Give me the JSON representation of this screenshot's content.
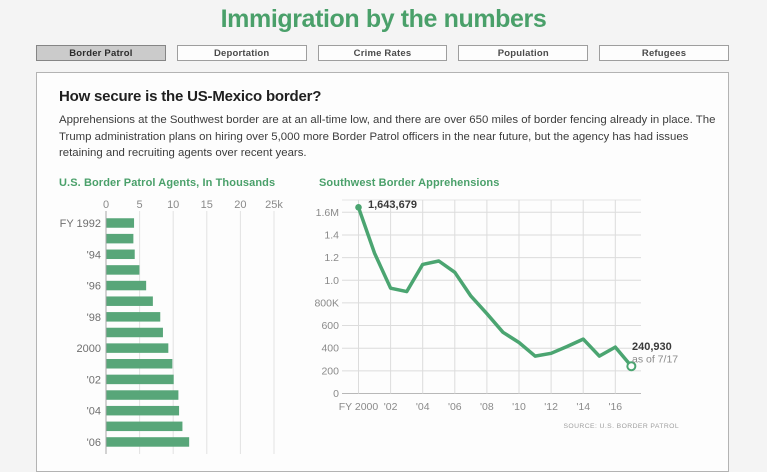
{
  "page": {
    "title": "Immigration by the numbers"
  },
  "tabs": [
    {
      "label": "Border Patrol",
      "active": true
    },
    {
      "label": "Deportation",
      "active": false
    },
    {
      "label": "Crime Rates",
      "active": false
    },
    {
      "label": "Population",
      "active": false
    },
    {
      "label": "Refugees",
      "active": false
    }
  ],
  "article": {
    "heading": "How secure is the US-Mexico border?",
    "body": "Apprehensions at the Southwest border are at an all-time low, and there are over 650 miles of border fencing already in place. The Trump administration plans on hiring over 5,000 more Border Patrol officers in the near future, but the agency has had issues retaining and recruiting agents over recent years."
  },
  "colors": {
    "accent_green": "#4aa06a",
    "bar_green": "#58a679",
    "line_green": "#4ba571",
    "active_tab_bg": "#cbcbcb",
    "grid_light": "#e2e2e2",
    "axis_gray": "#a6a6a6",
    "label_gray": "#777777"
  },
  "chart_data": [
    {
      "type": "bar",
      "orientation": "horizontal",
      "title": "U.S. Border Patrol Agents, In Thousands",
      "categories": [
        "FY 1992",
        "FY 1993",
        "FY 1994",
        "FY 1995",
        "FY 1996",
        "FY 1997",
        "FY 1998",
        "FY 1999",
        "FY 2000",
        "FY 2001",
        "FY 2002",
        "FY 2003",
        "FY 2004",
        "FY 2005",
        "FY 2006"
      ],
      "axis_category_labels": [
        "FY 1992",
        "",
        "'94",
        "",
        "'96",
        "",
        "'98",
        "",
        "2000",
        "",
        "'02",
        "",
        "'04",
        "",
        "'06"
      ],
      "values": [
        4.1,
        4.0,
        4.2,
        4.9,
        5.9,
        6.9,
        8.0,
        8.4,
        9.2,
        9.8,
        10.0,
        10.7,
        10.8,
        11.3,
        12.3
      ],
      "value_axis_ticks": [
        0,
        5,
        10,
        15,
        20,
        25
      ],
      "value_axis_tick_labels": [
        "0",
        "5",
        "10",
        "15",
        "20",
        "25k"
      ],
      "xlim": [
        0,
        26
      ],
      "grid": true
    },
    {
      "type": "line",
      "title": "Southwest Border Apprehensions",
      "x": [
        2000,
        2001,
        2002,
        2003,
        2004,
        2005,
        2006,
        2007,
        2008,
        2009,
        2010,
        2011,
        2012,
        2013,
        2014,
        2015,
        2016,
        2017
      ],
      "values": [
        1643679,
        1240000,
        930000,
        900000,
        1140000,
        1170000,
        1070000,
        860000,
        705000,
        540000,
        450000,
        330000,
        355000,
        415000,
        480000,
        330000,
        410000,
        240930
      ],
      "x_tick_labels": [
        "FY 2000",
        "'02",
        "'04",
        "'06",
        "'08",
        "'10",
        "'12",
        "'14",
        "'16"
      ],
      "y_tick_labels": [
        "1.6M",
        "1.4",
        "1.2",
        "1.0",
        "800K",
        "600",
        "400",
        "200",
        "0"
      ],
      "y_tick_values": [
        1600000,
        1400000,
        1200000,
        1000000,
        800000,
        600000,
        400000,
        200000,
        0
      ],
      "ylim": [
        0,
        1700000
      ],
      "grid": true,
      "annotations": {
        "first_point_label": "1,643,679",
        "last_point_label": "240,930",
        "last_point_note": "as of 7/17"
      },
      "source": "SOURCE: U.S. BORDER PATROL"
    }
  ]
}
